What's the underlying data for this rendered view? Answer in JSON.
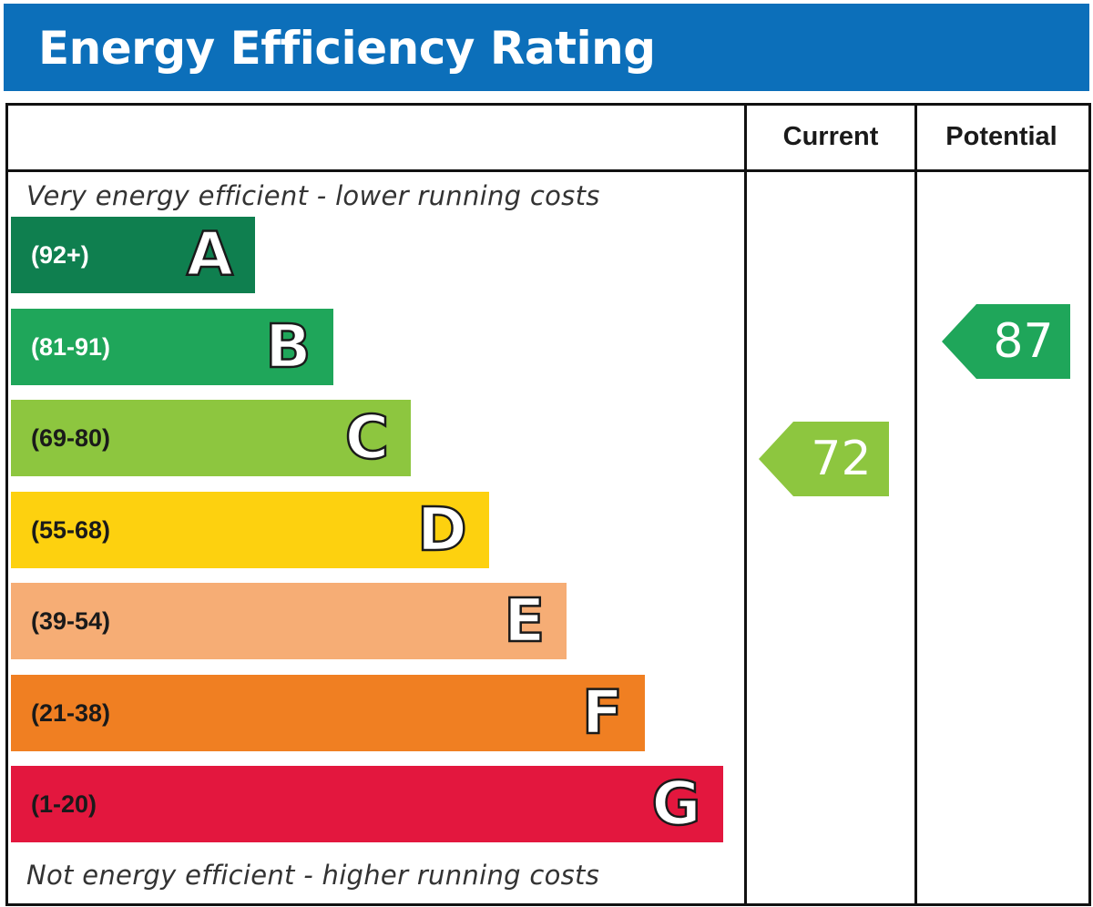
{
  "title": "Energy Efficiency Rating",
  "columns": {
    "current": "Current",
    "potential": "Potential"
  },
  "notes": {
    "top": "Very energy efficient - lower running costs",
    "bottom": "Not energy efficient - higher running costs"
  },
  "chart_data": {
    "type": "bar",
    "title": "Energy Efficiency Rating",
    "bands": [
      {
        "letter": "A",
        "range": "(92+)",
        "color": "#0f7f4f",
        "text_color": "#ffffff"
      },
      {
        "letter": "B",
        "range": "(81-91)",
        "color": "#1fa65a",
        "text_color": "#ffffff"
      },
      {
        "letter": "C",
        "range": "(69-80)",
        "color": "#8dc63f",
        "text_color": "#1a1a1a"
      },
      {
        "letter": "D",
        "range": "(55-68)",
        "color": "#fdd10f",
        "text_color": "#1a1a1a"
      },
      {
        "letter": "E",
        "range": "(39-54)",
        "color": "#f6ad75",
        "text_color": "#1a1a1a"
      },
      {
        "letter": "F",
        "range": "(21-38)",
        "color": "#f07f22",
        "text_color": "#1a1a1a"
      },
      {
        "letter": "G",
        "range": "(1-20)",
        "color": "#e3173e",
        "text_color": "#1a1a1a"
      }
    ],
    "ratings": {
      "current": {
        "value": 72,
        "band": "C",
        "color": "#8dc63f"
      },
      "potential": {
        "value": 87,
        "band": "B",
        "color": "#1fa65a"
      }
    }
  }
}
